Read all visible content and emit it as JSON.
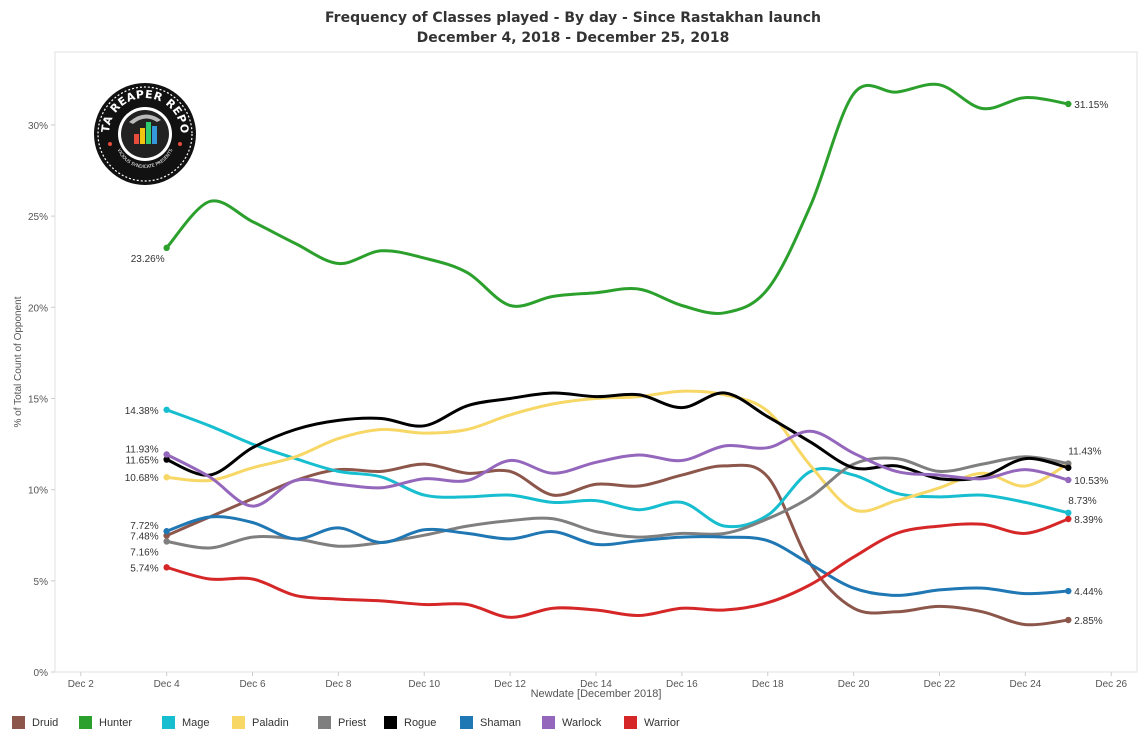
{
  "header": {
    "title": "Frequency of Classes played - By day - Since Rastakhan launch",
    "subtitle": "December 4, 2018 - December 25, 2018"
  },
  "logo": {
    "text_top": "DATA REAPER REPORT",
    "text_bottom": "VICIOUS SYNDICATE PRESENTS"
  },
  "chart_data": {
    "type": "line",
    "title": "Frequency of Classes played - By day - Since Rastakhan launch",
    "subtitle": "December 4, 2018 - December 25, 2018",
    "xlabel": "Newdate [December 2018]",
    "ylabel": "% of Total Count of Opponent",
    "x": [
      4,
      5,
      6,
      7,
      8,
      9,
      10,
      11,
      12,
      13,
      14,
      15,
      16,
      17,
      18,
      19,
      20,
      21,
      22,
      23,
      24,
      25
    ],
    "xlim": [
      1.4,
      26.6
    ],
    "x_ticks": [
      2,
      4,
      6,
      8,
      10,
      12,
      14,
      16,
      18,
      20,
      22,
      24,
      26
    ],
    "x_tick_labels": [
      "Dec 2",
      "Dec 4",
      "Dec 6",
      "Dec 8",
      "Dec 10",
      "Dec 12",
      "Dec 14",
      "Dec 16",
      "Dec 18",
      "Dec 20",
      "Dec 22",
      "Dec 24",
      "Dec 26"
    ],
    "ylim": [
      0,
      34
    ],
    "y_ticks": [
      0,
      5,
      10,
      15,
      20,
      25,
      30
    ],
    "y_tick_labels": [
      "0%",
      "5%",
      "10%",
      "15%",
      "20%",
      "25%",
      "30%"
    ],
    "grid": false,
    "legend_position": "bottom",
    "series": [
      {
        "name": "Druid",
        "color": "#8c564b",
        "values": [
          7.48,
          8.5,
          9.5,
          10.5,
          11.1,
          11.0,
          11.4,
          10.9,
          11.0,
          9.7,
          10.3,
          10.2,
          10.8,
          11.3,
          10.7,
          5.9,
          3.5,
          3.3,
          3.6,
          3.3,
          2.6,
          2.85
        ],
        "labels": [
          {
            "i": 0,
            "text": "7.48%",
            "side": "left"
          },
          {
            "i": 21,
            "text": "2.85%",
            "side": "right"
          }
        ]
      },
      {
        "name": "Hunter",
        "color": "#2ca02c",
        "values": [
          23.26,
          25.8,
          24.7,
          23.5,
          22.4,
          23.1,
          22.7,
          21.9,
          20.1,
          20.6,
          20.8,
          21.0,
          20.1,
          19.7,
          21.0,
          25.6,
          31.7,
          31.8,
          32.2,
          30.9,
          31.5,
          31.15
        ],
        "labels": [
          {
            "i": 0,
            "text": "23.26%",
            "side": "below-left"
          },
          {
            "i": 21,
            "text": "31.15%",
            "side": "right"
          }
        ]
      },
      {
        "name": "Mage",
        "color": "#17becf",
        "values": [
          14.38,
          13.5,
          12.5,
          11.7,
          11.0,
          10.7,
          9.7,
          9.6,
          9.7,
          9.3,
          9.4,
          8.9,
          9.3,
          8.0,
          8.6,
          11.0,
          10.8,
          9.8,
          9.6,
          9.7,
          9.3,
          8.73
        ],
        "labels": [
          {
            "i": 0,
            "text": "14.38%",
            "side": "left"
          },
          {
            "i": 21,
            "text": "8.73%",
            "side": "right-above"
          }
        ]
      },
      {
        "name": "Paladin",
        "color": "#f7d766",
        "values": [
          10.68,
          10.5,
          11.2,
          11.8,
          12.8,
          13.3,
          13.1,
          13.3,
          14.1,
          14.7,
          15.0,
          15.1,
          15.4,
          15.2,
          14.3,
          11.3,
          8.9,
          9.4,
          10.1,
          10.9,
          10.2,
          11.43
        ],
        "labels": [
          {
            "i": 0,
            "text": "10.68%",
            "side": "left"
          },
          {
            "i": 21,
            "text": "11.43%",
            "side": "right-above"
          }
        ]
      },
      {
        "name": "Priest",
        "color": "#7f7f7f",
        "values": [
          7.16,
          6.8,
          7.4,
          7.3,
          6.9,
          7.1,
          7.5,
          8.0,
          8.3,
          8.4,
          7.7,
          7.4,
          7.6,
          7.6,
          8.4,
          9.6,
          11.4,
          11.7,
          11.0,
          11.4,
          11.8,
          11.43
        ],
        "labels": [
          {
            "i": 0,
            "text": "7.16%",
            "side": "left-below"
          }
        ]
      },
      {
        "name": "Rogue",
        "color": "#000000",
        "values": [
          11.65,
          10.8,
          12.3,
          13.3,
          13.8,
          13.9,
          13.5,
          14.6,
          15.0,
          15.3,
          15.1,
          15.2,
          14.5,
          15.3,
          14.0,
          12.6,
          11.2,
          11.3,
          10.6,
          10.7,
          11.7,
          11.2
        ],
        "labels": [
          {
            "i": 0,
            "text": "11.65%",
            "side": "left"
          }
        ]
      },
      {
        "name": "Shaman",
        "color": "#1f77b4",
        "values": [
          7.72,
          8.5,
          8.2,
          7.3,
          7.9,
          7.1,
          7.8,
          7.6,
          7.3,
          7.7,
          7.0,
          7.2,
          7.4,
          7.4,
          7.2,
          5.9,
          4.6,
          4.2,
          4.5,
          4.6,
          4.3,
          4.44
        ],
        "labels": [
          {
            "i": 0,
            "text": "7.72%",
            "side": "left-above"
          },
          {
            "i": 21,
            "text": "4.44%",
            "side": "right"
          }
        ]
      },
      {
        "name": "Warlock",
        "color": "#9467bd",
        "values": [
          11.93,
          10.7,
          9.1,
          10.5,
          10.3,
          10.1,
          10.6,
          10.5,
          11.6,
          10.9,
          11.5,
          11.9,
          11.6,
          12.4,
          12.3,
          13.2,
          12.0,
          11.0,
          10.8,
          10.6,
          11.1,
          10.53
        ],
        "labels": [
          {
            "i": 0,
            "text": "11.93%",
            "side": "left-above"
          },
          {
            "i": 21,
            "text": "10.53%",
            "side": "right"
          }
        ]
      },
      {
        "name": "Warrior",
        "color": "#d62728",
        "values": [
          5.74,
          5.1,
          5.1,
          4.2,
          4.0,
          3.9,
          3.7,
          3.7,
          3.0,
          3.5,
          3.4,
          3.1,
          3.5,
          3.4,
          3.8,
          4.8,
          6.3,
          7.6,
          8.0,
          8.1,
          7.6,
          8.39
        ],
        "labels": [
          {
            "i": 0,
            "text": "5.74%",
            "side": "left"
          },
          {
            "i": 21,
            "text": "8.39%",
            "side": "right"
          }
        ]
      }
    ]
  }
}
